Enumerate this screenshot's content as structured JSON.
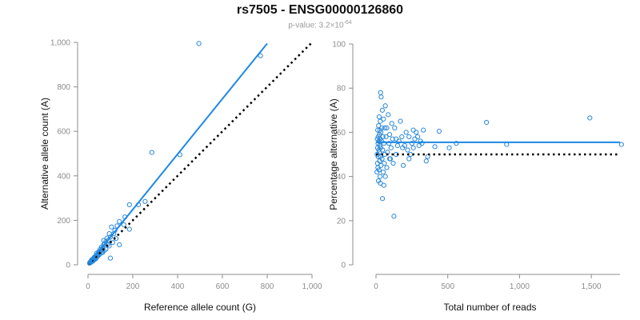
{
  "title": "rs7505 - ENSG00000126860",
  "subtitle_prefix": "p-value: 3.2×10",
  "subtitle_exponent": "-64",
  "colors": {
    "points": "#2a88d8",
    "fit": "#1e87e5",
    "reference": "#000000",
    "axis": "#8c8c8c"
  },
  "chart_data": [
    {
      "type": "scatter",
      "xlabel": "Reference allele count (G)",
      "ylabel": "Alternative allele count (A)",
      "xlim": [
        0,
        1000
      ],
      "ylim": [
        0,
        1000
      ],
      "xticks": [
        0,
        200,
        400,
        600,
        800,
        1000
      ],
      "xtick_labels": [
        "0",
        "200",
        "400",
        "600",
        "800",
        "1,000"
      ],
      "yticks": [
        0,
        200,
        400,
        600,
        800,
        1000
      ],
      "ytick_labels": [
        "0",
        "200",
        "400",
        "600",
        "800",
        "1,000"
      ],
      "fit_line": {
        "x": [
          0,
          800
        ],
        "y": [
          0,
          995
        ]
      },
      "reference_line": {
        "x": [
          0,
          1000
        ],
        "y": [
          0,
          1000
        ]
      },
      "points": [
        [
          495,
          995
        ],
        [
          770,
          940
        ],
        [
          410,
          495
        ],
        [
          285,
          505
        ],
        [
          255,
          285
        ],
        [
          225,
          270
        ],
        [
          185,
          270
        ],
        [
          185,
          160
        ],
        [
          165,
          215
        ],
        [
          160,
          180
        ],
        [
          140,
          195
        ],
        [
          130,
          175
        ],
        [
          120,
          155
        ],
        [
          115,
          140
        ],
        [
          105,
          170
        ],
        [
          100,
          125
        ],
        [
          95,
          140
        ],
        [
          90,
          110
        ],
        [
          85,
          120
        ],
        [
          80,
          105
        ],
        [
          75,
          95
        ],
        [
          70,
          110
        ],
        [
          70,
          90
        ],
        [
          65,
          75
        ],
        [
          60,
          80
        ],
        [
          60,
          65
        ],
        [
          55,
          70
        ],
        [
          55,
          60
        ],
        [
          50,
          55
        ],
        [
          50,
          45
        ],
        [
          45,
          50
        ],
        [
          45,
          40
        ],
        [
          40,
          45
        ],
        [
          40,
          35
        ],
        [
          35,
          40
        ],
        [
          35,
          30
        ],
        [
          30,
          35
        ],
        [
          30,
          25
        ],
        [
          28,
          30
        ],
        [
          25,
          28
        ],
        [
          25,
          20
        ],
        [
          22,
          25
        ],
        [
          20,
          22
        ],
        [
          20,
          18
        ],
        [
          18,
          20
        ],
        [
          18,
          15
        ],
        [
          15,
          18
        ],
        [
          15,
          14
        ],
        [
          12,
          15
        ],
        [
          12,
          12
        ],
        [
          10,
          12
        ],
        [
          10,
          10
        ],
        [
          8,
          10
        ],
        [
          8,
          8
        ],
        [
          100,
          30
        ],
        [
          140,
          90
        ],
        [
          110,
          100
        ],
        [
          95,
          85
        ],
        [
          80,
          70
        ],
        [
          65,
          55
        ],
        [
          48,
          60
        ],
        [
          38,
          52
        ],
        [
          32,
          28
        ],
        [
          27,
          33
        ],
        [
          23,
          19
        ],
        [
          17,
          23
        ],
        [
          14,
          16
        ],
        [
          13,
          11
        ],
        [
          11,
          13
        ],
        [
          21,
          16
        ],
        [
          26,
          22
        ],
        [
          33,
          26
        ],
        [
          42,
          38
        ],
        [
          52,
          48
        ],
        [
          62,
          58
        ],
        [
          72,
          64
        ],
        [
          88,
          92
        ],
        [
          125,
          118
        ]
      ]
    },
    {
      "type": "scatter",
      "xlabel": "Total number of reads",
      "ylabel": "Percentage alternative (A)",
      "xlim": [
        0,
        1700
      ],
      "ylim": [
        0,
        100
      ],
      "xticks": [
        0,
        500,
        1000,
        1500
      ],
      "xtick_labels": [
        "0",
        "500",
        "1,000",
        "1,500"
      ],
      "yticks": [
        0,
        20,
        40,
        60,
        80,
        100
      ],
      "ytick_labels": [
        "0",
        "20",
        "40",
        "60",
        "80",
        "100"
      ],
      "fit_line": {
        "x": [
          0,
          1700
        ],
        "y": [
          55.5,
          55.5
        ]
      },
      "reference_line": {
        "x": [
          0,
          1700
        ],
        "y": [
          50,
          50
        ]
      },
      "points": [
        [
          1490,
          66.5
        ],
        [
          770,
          64.5
        ],
        [
          1710,
          54.5
        ],
        [
          910,
          54.5
        ],
        [
          560,
          55
        ],
        [
          510,
          53
        ],
        [
          440,
          60.5
        ],
        [
          410,
          53.5
        ],
        [
          360,
          49
        ],
        [
          350,
          47
        ],
        [
          330,
          61
        ],
        [
          310,
          56
        ],
        [
          300,
          54
        ],
        [
          290,
          58
        ],
        [
          280,
          60
        ],
        [
          270,
          57
        ],
        [
          260,
          53
        ],
        [
          250,
          55
        ],
        [
          240,
          50
        ],
        [
          230,
          48
        ],
        [
          220,
          52
        ],
        [
          210,
          60
        ],
        [
          200,
          54
        ],
        [
          190,
          45
        ],
        [
          180,
          58
        ],
        [
          170,
          65
        ],
        [
          160,
          56
        ],
        [
          150,
          54
        ],
        [
          140,
          50
        ],
        [
          130,
          62
        ],
        [
          120,
          46
        ],
        [
          115,
          57
        ],
        [
          110,
          64
        ],
        [
          105,
          53
        ],
        [
          100,
          48
        ],
        [
          95,
          59
        ],
        [
          90,
          55
        ],
        [
          85,
          68
        ],
        [
          80,
          51
        ],
        [
          75,
          44
        ],
        [
          70,
          58
        ],
        [
          65,
          72
        ],
        [
          62,
          62
        ],
        [
          60,
          50
        ],
        [
          58,
          46
        ],
        [
          55,
          55
        ],
        [
          52,
          66
        ],
        [
          50,
          42
        ],
        [
          48,
          58
        ],
        [
          46,
          52
        ],
        [
          44,
          70
        ],
        [
          42,
          48
        ],
        [
          40,
          62
        ],
        [
          38,
          56
        ],
        [
          36,
          76
        ],
        [
          35,
          45
        ],
        [
          34,
          60
        ],
        [
          33,
          53
        ],
        [
          32,
          78
        ],
        [
          31,
          49
        ],
        [
          30,
          65
        ],
        [
          29,
          57
        ],
        [
          28,
          40
        ],
        [
          27,
          61
        ],
        [
          26,
          54
        ],
        [
          25,
          47
        ],
        [
          24,
          59
        ],
        [
          23,
          51
        ],
        [
          22,
          67
        ],
        [
          21,
          43
        ],
        [
          20,
          56
        ],
        [
          19,
          52
        ],
        [
          18,
          63
        ],
        [
          17,
          38
        ],
        [
          16,
          58
        ],
        [
          15,
          49
        ],
        [
          14,
          55
        ],
        [
          13,
          44
        ],
        [
          12,
          61
        ],
        [
          11,
          53
        ],
        [
          10,
          46
        ],
        [
          9,
          57
        ],
        [
          8,
          50
        ],
        [
          7,
          42
        ],
        [
          125,
          22
        ],
        [
          45,
          30
        ],
        [
          30,
          37
        ],
        [
          55,
          36
        ],
        [
          65,
          40
        ],
        [
          75,
          62
        ],
        [
          95,
          48
        ],
        [
          140,
          57
        ],
        [
          185,
          53
        ],
        [
          230,
          58
        ],
        [
          260,
          61
        ],
        [
          320,
          55
        ]
      ]
    }
  ]
}
